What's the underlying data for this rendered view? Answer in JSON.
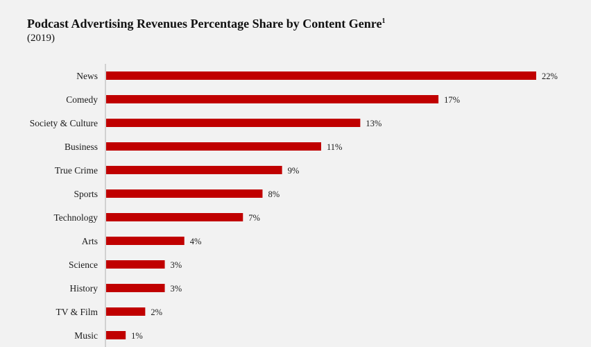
{
  "chart_data": {
    "type": "bar",
    "orientation": "horizontal",
    "title": "Podcast Advertising Revenues Percentage Share by Content Genre",
    "title_footnote_marker": "1",
    "subtitle": "(2019)",
    "categories": [
      "News",
      "Comedy",
      "Society & Culture",
      "Business",
      "True Crime",
      "Sports",
      "Technology",
      "Arts",
      "Science",
      "History",
      "TV & Film",
      "Music"
    ],
    "values": [
      22,
      17,
      13,
      11,
      9,
      8,
      7,
      4,
      3,
      3,
      2,
      1
    ],
    "value_labels": [
      "22%",
      "17%",
      "13%",
      "11%",
      "9%",
      "8%",
      "7%",
      "4%",
      "3%",
      "3%",
      "2%",
      "1%"
    ],
    "unit": "%",
    "xlabel": "",
    "ylabel": "",
    "xlim": [
      0,
      22
    ],
    "grid": false,
    "legend": "none",
    "bar_color": "#c00000"
  }
}
